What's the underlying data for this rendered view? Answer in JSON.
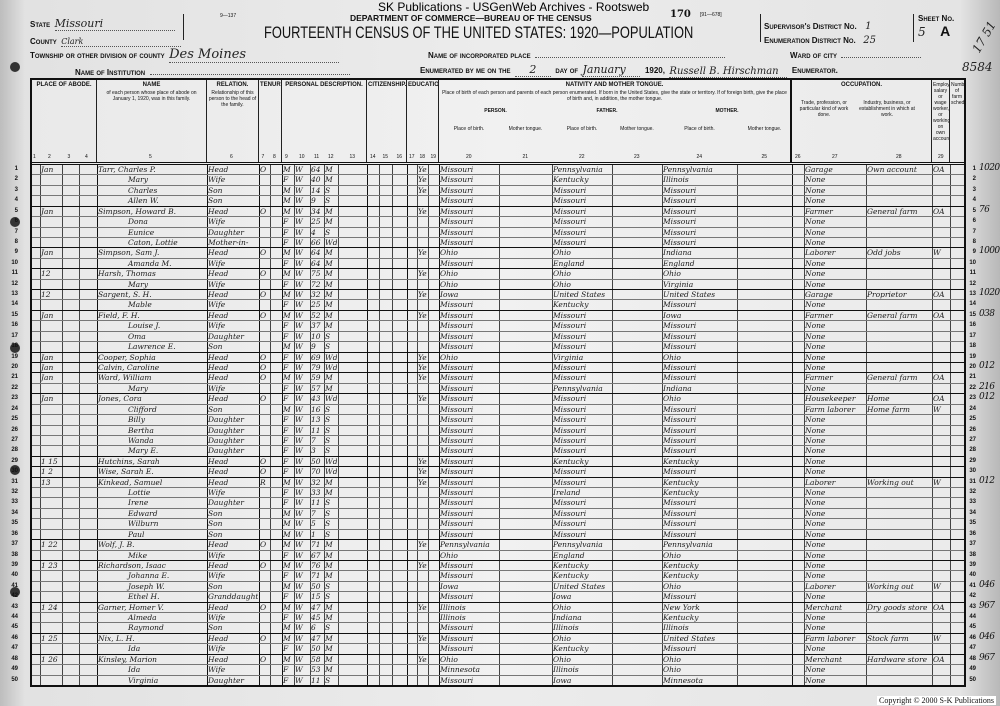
{
  "watermark": "SK Publications - USGenWeb Archives - Rootsweb",
  "form_number": "9—137",
  "sheet_stamp": "170",
  "form_code": "[91—678]",
  "department": "DEPARTMENT OF COMMERCE—BUREAU OF THE CENSUS",
  "title": "FOURTEENTH CENSUS OF THE UNITED STATES: 1920—POPULATION",
  "fields": {
    "state_label": "State",
    "state_value": "Missouri",
    "county_label": "County",
    "county_value": "Clark",
    "township_label": "Township or other division of county",
    "township_value": "Des Moines",
    "institution_label": "Name of Institution",
    "institution_value": "",
    "place_label": "Name of incorporated place",
    "place_value": "",
    "ward_label": "Ward of city",
    "ward_value": "",
    "enumerated_label": "Enumerated by me on the",
    "enumerated_day": "2",
    "day_of_label": "day of",
    "enumerated_month": "January",
    "year_label": "1920,",
    "enumerator_name": "Russell B. Hirschman",
    "enumerator_label": "Enumerator.",
    "supervisor_label": "Supervisor's District No.",
    "supervisor_value": "1",
    "ed_label": "Enumeration District No.",
    "ed_value": "25",
    "sheet_label": "Sheet No.",
    "sheet_value": "5",
    "sheet_side": "A",
    "margin_note_1": "17 51",
    "margin_note_2": "8584"
  },
  "column_groups": {
    "abode": "PLACE OF ABODE.",
    "name": "NAME",
    "relation": "RELATION.",
    "tenure": "TENURE.",
    "personal": "PERSONAL DESCRIPTION.",
    "citizenship": "CITIZENSHIP.",
    "education": "EDUCATION.",
    "nativity": "NATIVITY AND MOTHER TONGUE.",
    "occupation": "OCCUPATION."
  },
  "column_texts": {
    "name_desc": "of each person whose place of abode on January 1, 1920, was in this family.",
    "relation_desc": "Relationship of this person to the head of the family.",
    "nativity_desc": "Place of birth of each person and parents of each person enumerated. If born in the United States, give the state or territory. If of foreign birth, give the place of birth and, in addition, the mother tongue.",
    "person": "PERSON.",
    "father": "FATHER.",
    "mother": "MOTHER.",
    "place_of_birth": "Place of birth.",
    "mother_tongue": "Mother tongue.",
    "trade": "Trade, profession, or particular kind of work done.",
    "industry": "Industry, business, or establishment in which at work.",
    "employer": "Employer, salary or wage worker, or working on own account.",
    "farm_schedule": "Number of farm schedule."
  },
  "column_numbers": [
    "1",
    "2",
    "3",
    "4",
    "5",
    "6",
    "7",
    "8",
    "9",
    "10",
    "11",
    "12",
    "13",
    "14",
    "15",
    "16",
    "17",
    "18",
    "19",
    "20",
    "21",
    "22",
    "23",
    "24",
    "25",
    "26",
    "27",
    "28",
    "29"
  ],
  "rows": [
    {
      "n": "1",
      "abode": "Jan 11 13",
      "name": "Tarr, Charles P.",
      "rel": "Head",
      "tenure": "O F",
      "sex": "M",
      "race": "W",
      "age": "64",
      "ms": "M",
      "bp": "Missouri",
      "fbp": "Pennsylvania",
      "mbp": "Pennsylvania",
      "lang": "Yes",
      "occ": "Garage",
      "ind": "Own account",
      "emp": "OA",
      "note": "1020"
    },
    {
      "n": "2",
      "name": "Mary",
      "rel": "Wife",
      "sex": "F",
      "race": "W",
      "age": "40",
      "ms": "M",
      "bp": "Missouri",
      "fbp": "Kentucky",
      "mbp": "Illinois",
      "lang": "Yes",
      "occ": "None"
    },
    {
      "n": "3",
      "name": "Charles",
      "rel": "Son",
      "sex": "M",
      "race": "W",
      "age": "14",
      "ms": "S",
      "bp": "Missouri",
      "fbp": "Missouri",
      "mbp": "Missouri",
      "lang": "Yes",
      "occ": "None"
    },
    {
      "n": "4",
      "name": "Allen W.",
      "rel": "Son",
      "sex": "M",
      "race": "W",
      "age": "9",
      "ms": "S",
      "bp": "Missouri",
      "fbp": "Missouri",
      "mbp": "Missouri",
      "occ": "None"
    },
    {
      "n": "5",
      "abode": "Jan 12 14",
      "name": "Simpson, Howard B.",
      "rel": "Head",
      "tenure": "O F",
      "sex": "M",
      "race": "W",
      "age": "34",
      "ms": "M",
      "bp": "Missouri",
      "fbp": "Missouri",
      "mbp": "Missouri",
      "lang": "Yes",
      "occ": "Farmer",
      "ind": "General farm",
      "emp": "OA",
      "note": "76"
    },
    {
      "n": "6",
      "name": "Dona",
      "rel": "Wife",
      "sex": "F",
      "race": "W",
      "age": "25",
      "ms": "M",
      "bp": "Missouri",
      "fbp": "Missouri",
      "mbp": "Missouri",
      "occ": "None"
    },
    {
      "n": "7",
      "name": "Eunice",
      "rel": "Daughter",
      "sex": "F",
      "race": "W",
      "age": "4",
      "ms": "S",
      "bp": "Missouri",
      "fbp": "Missouri",
      "mbp": "Missouri",
      "occ": "None"
    },
    {
      "n": "8",
      "name": "Caton, Lottie",
      "rel": "Mother-in-law",
      "sex": "F",
      "race": "W",
      "age": "66",
      "ms": "Wd",
      "bp": "Missouri",
      "fbp": "Missouri",
      "mbp": "Missouri",
      "occ": "None"
    },
    {
      "n": "9",
      "abode": "Jan 13 15",
      "name": "Simpson, Sam J.",
      "rel": "Head",
      "tenure": "O F",
      "sex": "M",
      "race": "W",
      "age": "64",
      "ms": "M",
      "bp": "Ohio",
      "fbp": "Ohio",
      "mbp": "Indiana",
      "lang": "Yes",
      "occ": "Laborer",
      "ind": "Odd jobs",
      "emp": "W",
      "note": "1000"
    },
    {
      "n": "10",
      "name": "Amanda M.",
      "rel": "Wife",
      "sex": "F",
      "race": "W",
      "age": "64",
      "ms": "M",
      "bp": "Missouri",
      "fbp": "England",
      "mbp": "England",
      "occ": "None"
    },
    {
      "n": "11",
      "abode": "12 16",
      "name": "Harsh, Thomas",
      "rel": "Head",
      "tenure": "O F",
      "sex": "M",
      "race": "W",
      "age": "75",
      "ms": "M",
      "bp": "Ohio",
      "fbp": "Ohio",
      "mbp": "Ohio",
      "lang": "Yes",
      "occ": "None"
    },
    {
      "n": "12",
      "name": "Mary",
      "rel": "Wife",
      "sex": "F",
      "race": "W",
      "age": "72",
      "ms": "M",
      "bp": "Ohio",
      "fbp": "Ohio",
      "mbp": "Virginia",
      "occ": "None"
    },
    {
      "n": "13",
      "abode": "12 17",
      "name": "Sargent, S. H.",
      "rel": "Head",
      "tenure": "O F",
      "sex": "M",
      "race": "W",
      "age": "32",
      "ms": "M",
      "bp": "Iowa",
      "fbp": "United States",
      "mbp": "United States",
      "lang": "Yes",
      "occ": "Garage",
      "ind": "Proprietor",
      "emp": "OA",
      "note": "1020"
    },
    {
      "n": "14",
      "name": "Mable",
      "rel": "Wife",
      "sex": "F",
      "race": "W",
      "age": "25",
      "ms": "M",
      "bp": "Missouri",
      "fbp": "Kentucky",
      "mbp": "Missouri",
      "occ": "None"
    },
    {
      "n": "15",
      "abode": "Jan 12 18",
      "name": "Field, F. H.",
      "rel": "Head",
      "tenure": "O F",
      "sex": "M",
      "race": "W",
      "age": "52",
      "ms": "M",
      "bp": "Missouri",
      "fbp": "Missouri",
      "mbp": "Iowa",
      "lang": "Yes",
      "occ": "Farmer",
      "ind": "General farm",
      "emp": "OA",
      "note": "038"
    },
    {
      "n": "16",
      "name": "Louise J.",
      "rel": "Wife",
      "sex": "F",
      "race": "W",
      "age": "37",
      "ms": "M",
      "bp": "Missouri",
      "fbp": "Missouri",
      "mbp": "Missouri",
      "occ": "None"
    },
    {
      "n": "17",
      "name": "Oma",
      "rel": "Daughter",
      "sex": "F",
      "race": "W",
      "age": "10",
      "ms": "S",
      "bp": "Missouri",
      "fbp": "Missouri",
      "mbp": "Missouri",
      "occ": "None"
    },
    {
      "n": "18",
      "name": "Lawrence E.",
      "rel": "Son",
      "sex": "M",
      "race": "W",
      "age": "9",
      "ms": "S",
      "bp": "Missouri",
      "fbp": "Missouri",
      "mbp": "Missouri",
      "occ": "None"
    },
    {
      "n": "19",
      "abode": "Jan 13 19",
      "name": "Cooper, Sophia",
      "rel": "Head",
      "tenure": "O F",
      "sex": "F",
      "race": "W",
      "age": "69",
      "ms": "Wd",
      "bp": "Ohio",
      "fbp": "Virginia",
      "mbp": "Ohio",
      "lang": "Yes",
      "occ": "None"
    },
    {
      "n": "20",
      "abode": "Jan 14 20",
      "name": "Calvin, Caroline",
      "rel": "Head",
      "tenure": "O F",
      "sex": "F",
      "race": "W",
      "age": "79",
      "ms": "Wd",
      "bp": "Missouri",
      "fbp": "Missouri",
      "mbp": "Missouri",
      "lang": "Yes",
      "occ": "None",
      "note": "012"
    },
    {
      "n": "21",
      "abode": "Jan 15 21",
      "name": "Ward, William",
      "rel": "Head",
      "tenure": "O F",
      "sex": "M",
      "race": "W",
      "age": "59",
      "ms": "M",
      "bp": "Missouri",
      "fbp": "Missouri",
      "mbp": "Missouri",
      "lang": "Yes",
      "occ": "Farmer",
      "ind": "General farm",
      "emp": "OA"
    },
    {
      "n": "22",
      "name": "Mary",
      "rel": "Wife",
      "sex": "F",
      "race": "W",
      "age": "57",
      "ms": "M",
      "bp": "Missouri",
      "fbp": "Pennsylvania",
      "mbp": "Indiana",
      "occ": "None",
      "note": "216"
    },
    {
      "n": "23",
      "abode": "Jan 16 22",
      "name": "Jones, Cora",
      "rel": "Head",
      "tenure": "O M",
      "sex": "F",
      "race": "W",
      "age": "43",
      "ms": "Wd",
      "bp": "Missouri",
      "fbp": "Missouri",
      "mbp": "Ohio",
      "lang": "Yes",
      "occ": "Housekeeper",
      "ind": "Home",
      "emp": "OA",
      "note": "012"
    },
    {
      "n": "24",
      "name": "Clifford",
      "rel": "Son",
      "sex": "M",
      "race": "W",
      "age": "16",
      "ms": "S",
      "bp": "Missouri",
      "fbp": "Missouri",
      "mbp": "Missouri",
      "occ": "Farm laborer",
      "ind": "Home farm",
      "emp": "W"
    },
    {
      "n": "25",
      "name": "Billy",
      "rel": "Daughter",
      "sex": "F",
      "race": "W",
      "age": "13",
      "ms": "S",
      "bp": "Missouri",
      "fbp": "Missouri",
      "mbp": "Missouri",
      "occ": "None"
    },
    {
      "n": "26",
      "name": "Bertha",
      "rel": "Daughter",
      "sex": "F",
      "race": "W",
      "age": "11",
      "ms": "S",
      "bp": "Missouri",
      "fbp": "Missouri",
      "mbp": "Missouri",
      "occ": "None"
    },
    {
      "n": "27",
      "name": "Wanda",
      "rel": "Daughter",
      "sex": "F",
      "race": "W",
      "age": "7",
      "ms": "S",
      "bp": "Missouri",
      "fbp": "Missouri",
      "mbp": "Missouri",
      "occ": "None"
    },
    {
      "n": "28",
      "name": "Mary E.",
      "rel": "Daughter",
      "sex": "F",
      "race": "W",
      "age": "3",
      "ms": "S",
      "bp": "Missouri",
      "fbp": "Missouri",
      "mbp": "Missouri",
      "occ": "None"
    },
    {
      "n": "29",
      "abode": "1 15",
      "name": "Hutchins, Sarah",
      "rel": "Head",
      "tenure": "O F",
      "sex": "F",
      "race": "W",
      "age": "50",
      "ms": "Wd",
      "bp": "Missouri",
      "fbp": "Kentucky",
      "mbp": "Kentucky",
      "lang": "Yes",
      "occ": "None"
    },
    {
      "n": "30",
      "abode": "1 2 16",
      "name": "Wise, Sarah E.",
      "rel": "Head",
      "tenure": "O F",
      "sex": "F",
      "race": "W",
      "age": "70",
      "ms": "Wd",
      "bp": "Missouri",
      "fbp": "Missouri",
      "mbp": "Missouri",
      "lang": "Yes",
      "occ": "None"
    },
    {
      "n": "31",
      "abode": "13 15",
      "name": "Kinkead, Samuel",
      "rel": "Head",
      "tenure": "R",
      "sex": "M",
      "race": "W",
      "age": "32",
      "ms": "M",
      "bp": "Missouri",
      "fbp": "Missouri",
      "mbp": "Kentucky",
      "lang": "Yes",
      "occ": "Laborer",
      "ind": "Working out",
      "emp": "W",
      "note": "012"
    },
    {
      "n": "32",
      "name": "Lottie",
      "rel": "Wife",
      "sex": "F",
      "race": "W",
      "age": "33",
      "ms": "M",
      "bp": "Missouri",
      "fbp": "Ireland",
      "mbp": "Kentucky",
      "occ": "None"
    },
    {
      "n": "33",
      "name": "Irene",
      "rel": "Daughter",
      "sex": "F",
      "race": "W",
      "age": "11",
      "ms": "S",
      "bp": "Missouri",
      "fbp": "Missouri",
      "mbp": "Missouri",
      "occ": "None"
    },
    {
      "n": "34",
      "name": "Edward",
      "rel": "Son",
      "sex": "M",
      "race": "W",
      "age": "7",
      "ms": "S",
      "bp": "Missouri",
      "fbp": "Missouri",
      "mbp": "Missouri",
      "occ": "None"
    },
    {
      "n": "35",
      "name": "Wilburn",
      "rel": "Son",
      "sex": "M",
      "race": "W",
      "age": "5",
      "ms": "S",
      "bp": "Missouri",
      "fbp": "Missouri",
      "mbp": "Missouri",
      "occ": "None"
    },
    {
      "n": "36",
      "name": "Paul",
      "rel": "Son",
      "sex": "M",
      "race": "W",
      "age": "1",
      "ms": "S",
      "bp": "Missouri",
      "fbp": "Missouri",
      "mbp": "Missouri",
      "occ": "None"
    },
    {
      "n": "37",
      "abode": "1 22 18",
      "name": "Wolf, J. B.",
      "rel": "Head",
      "tenure": "O F",
      "sex": "M",
      "race": "W",
      "age": "71",
      "ms": "M",
      "bp": "Pennsylvania",
      "fbp": "Pennsylvania",
      "mbp": "Pennsylvania",
      "lang": "Yes",
      "occ": "None"
    },
    {
      "n": "38",
      "name": "Mike",
      "rel": "Wife",
      "sex": "F",
      "race": "W",
      "age": "67",
      "ms": "M",
      "bp": "Ohio",
      "fbp": "England",
      "mbp": "Ohio",
      "occ": "None"
    },
    {
      "n": "39",
      "abode": "1 23 19",
      "name": "Richardson, Isaac",
      "rel": "Head",
      "tenure": "O M",
      "sex": "M",
      "race": "W",
      "age": "76",
      "ms": "M",
      "bp": "Missouri",
      "fbp": "Kentucky",
      "mbp": "Kentucky",
      "lang": "Yes",
      "occ": "None"
    },
    {
      "n": "40",
      "name": "Johanna E.",
      "rel": "Wife",
      "sex": "F",
      "race": "W",
      "age": "71",
      "ms": "M",
      "bp": "Missouri",
      "fbp": "Kentucky",
      "mbp": "Kentucky",
      "occ": "None"
    },
    {
      "n": "41",
      "name": "Joseph W.",
      "rel": "Son",
      "sex": "M",
      "race": "W",
      "age": "50",
      "ms": "S",
      "bp": "Iowa",
      "fbp": "United States",
      "mbp": "Ohio",
      "occ": "Laborer",
      "ind": "Working out",
      "emp": "W",
      "note": "046"
    },
    {
      "n": "42",
      "name": "Ethel H.",
      "rel": "Granddaughter",
      "sex": "F",
      "race": "W",
      "age": "15",
      "ms": "S",
      "bp": "Missouri",
      "fbp": "Iowa",
      "mbp": "Missouri",
      "occ": "None"
    },
    {
      "n": "43",
      "abode": "1 24 20",
      "name": "Garner, Homer V.",
      "rel": "Head",
      "tenure": "O M",
      "sex": "M",
      "race": "W",
      "age": "47",
      "ms": "M",
      "bp": "Illinois",
      "fbp": "Ohio",
      "mbp": "New York",
      "lang": "Yes",
      "occ": "Merchant",
      "ind": "Dry goods store",
      "emp": "OA",
      "note": "967"
    },
    {
      "n": "44",
      "name": "Almeda",
      "rel": "Wife",
      "sex": "F",
      "race": "W",
      "age": "45",
      "ms": "M",
      "bp": "Illinois",
      "fbp": "Indiana",
      "mbp": "Kentucky",
      "occ": "None"
    },
    {
      "n": "45",
      "name": "Raymond",
      "rel": "Son",
      "sex": "M",
      "race": "W",
      "age": "6",
      "ms": "S",
      "bp": "Missouri",
      "fbp": "Illinois",
      "mbp": "Illinois",
      "occ": "None"
    },
    {
      "n": "46",
      "abode": "1 25 21",
      "name": "Nix, L. H.",
      "rel": "Head",
      "tenure": "O M",
      "sex": "M",
      "race": "W",
      "age": "47",
      "ms": "M",
      "bp": "Missouri",
      "fbp": "Ohio",
      "mbp": "United States",
      "lang": "Yes",
      "occ": "Farm laborer",
      "ind": "Stock farm",
      "emp": "W",
      "note": "046"
    },
    {
      "n": "47",
      "name": "Ida",
      "rel": "Wife",
      "sex": "F",
      "race": "W",
      "age": "50",
      "ms": "M",
      "bp": "Missouri",
      "fbp": "Kentucky",
      "mbp": "Missouri",
      "occ": "None"
    },
    {
      "n": "48",
      "abode": "1 26 22",
      "name": "Kinsley, Marion",
      "rel": "Head",
      "tenure": "O F",
      "sex": "M",
      "race": "W",
      "age": "58",
      "ms": "M",
      "bp": "Ohio",
      "fbp": "Ohio",
      "mbp": "Ohio",
      "lang": "Yes",
      "occ": "Merchant",
      "ind": "Hardware store",
      "emp": "OA",
      "note": "967"
    },
    {
      "n": "49",
      "name": "Ida",
      "rel": "Wife",
      "sex": "F",
      "race": "W",
      "age": "53",
      "ms": "M",
      "bp": "Minnesota",
      "fbp": "Illinois",
      "mbp": "Ohio",
      "occ": "None"
    },
    {
      "n": "50",
      "name": "Virginia",
      "rel": "Daughter",
      "sex": "F",
      "race": "W",
      "age": "11",
      "ms": "S",
      "bp": "Missouri",
      "fbp": "Iowa",
      "mbp": "Minnesota",
      "occ": "None"
    }
  ],
  "copyright": "Copyright © 2000 S-K Publications",
  "colors": {
    "paper": "#e6e6e6",
    "ink": "#111111",
    "handwriting": "#222222"
  }
}
